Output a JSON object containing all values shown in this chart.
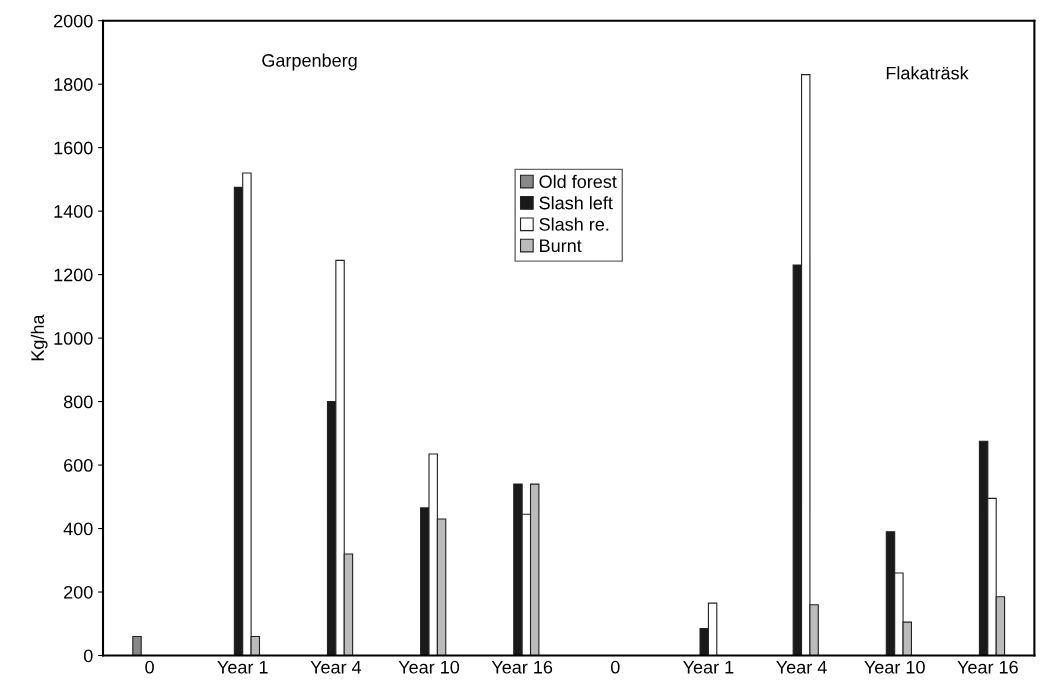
{
  "chart_data": {
    "type": "bar",
    "ylabel": "Kg/ha",
    "categories": [
      "0",
      "Year 1",
      "Year 4",
      "Year 10",
      "Year 16",
      "0",
      "Year 1",
      "Year 4",
      "Year 10",
      "Year 16"
    ],
    "series": [
      {
        "name": "Old forest",
        "color": "#888888",
        "values": [
          60,
          null,
          null,
          null,
          null,
          null,
          null,
          null,
          null,
          null
        ]
      },
      {
        "name": "Slash left",
        "color": "#1a1a1a",
        "values": [
          null,
          1475,
          800,
          465,
          540,
          null,
          85,
          1230,
          390,
          675
        ]
      },
      {
        "name": "Slash re.",
        "color": "#ffffff",
        "values": [
          null,
          1520,
          1245,
          635,
          445,
          null,
          165,
          1830,
          260,
          495
        ]
      },
      {
        "name": "Burnt",
        "color": "#bbbbbb",
        "values": [
          null,
          60,
          320,
          430,
          540,
          null,
          null,
          160,
          105,
          185
        ]
      }
    ],
    "ylim": [
      0,
      2000
    ],
    "yticks": [
      0,
      200,
      400,
      600,
      800,
      1000,
      1200,
      1400,
      1600,
      1800,
      2000
    ],
    "annotations": [
      "Garpenberg",
      "Flakaträsk"
    ],
    "legend": "top",
    "grid": false
  }
}
